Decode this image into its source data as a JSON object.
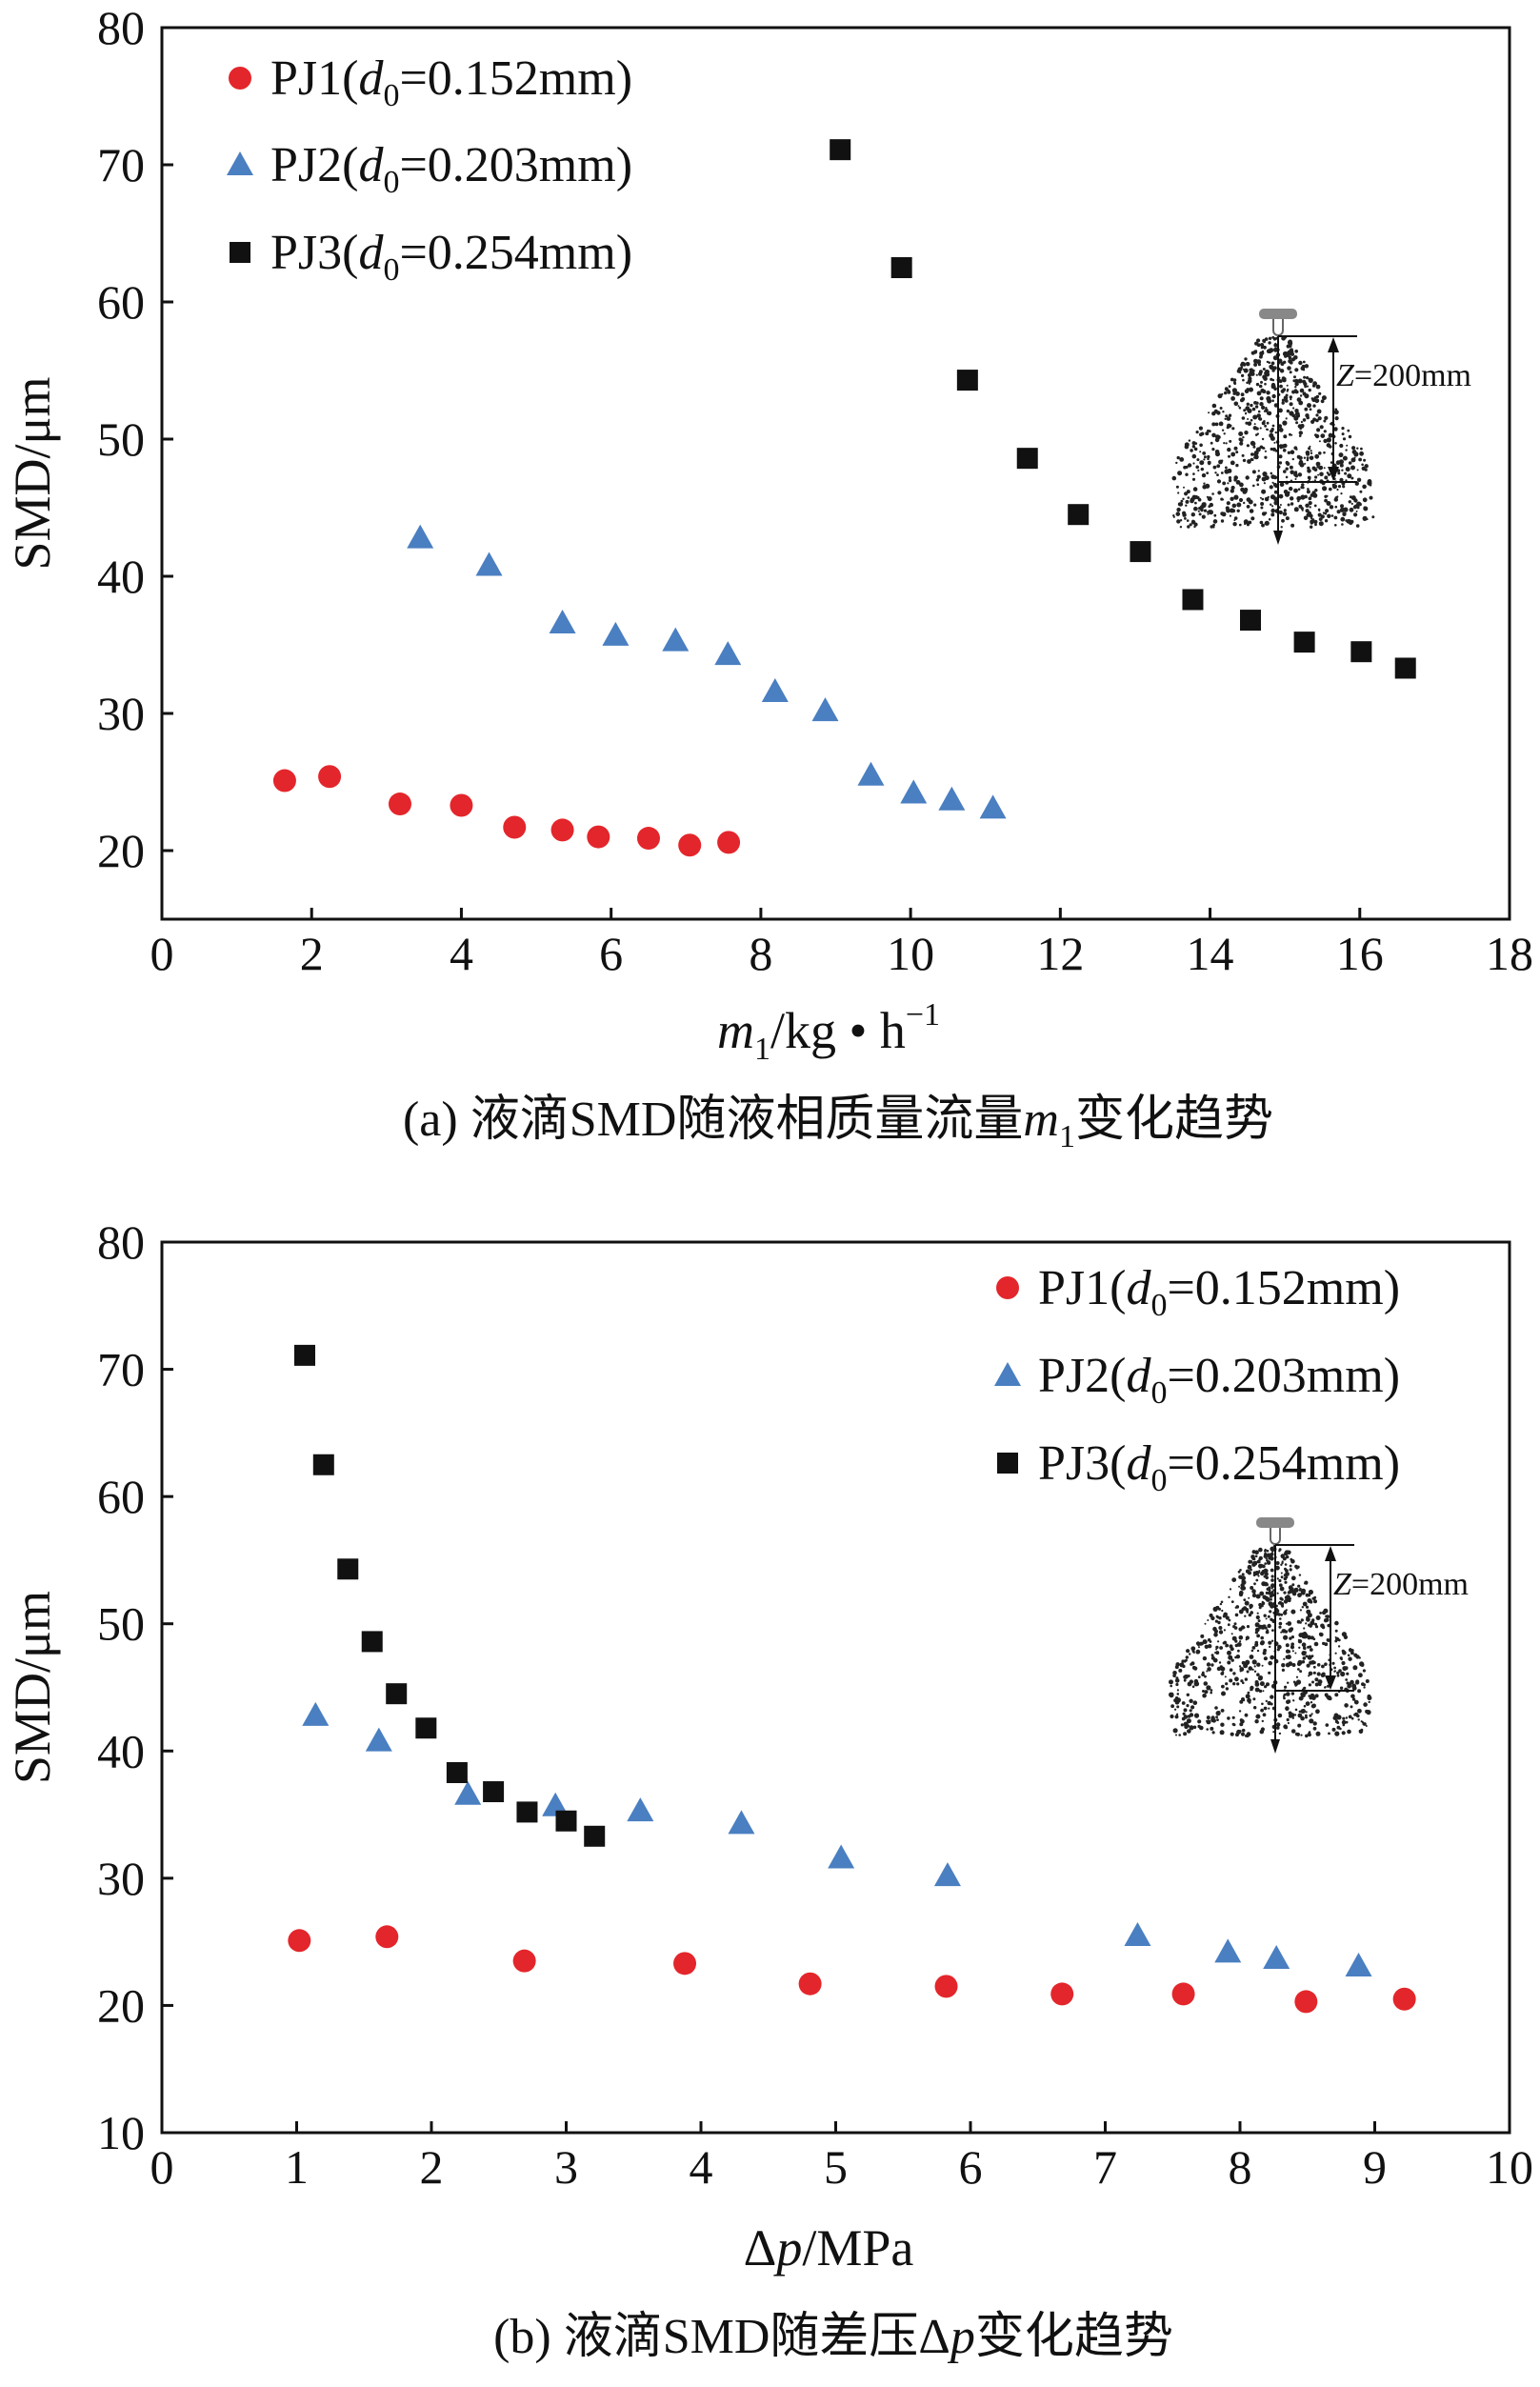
{
  "colors": {
    "PJ1": "#e3262b",
    "PJ2": "#4a7fc1",
    "PJ3": "#111111"
  },
  "legend": [
    {
      "name": "PJ1",
      "symbol": "d",
      "sub": "0",
      "value": "=0.152mm)",
      "marker": "circle"
    },
    {
      "name": "PJ2",
      "symbol": "d",
      "sub": "0",
      "value": "=0.203mm)",
      "marker": "triangle"
    },
    {
      "name": "PJ3",
      "symbol": "d",
      "sub": "0",
      "value": "=0.254mm)",
      "marker": "square"
    }
  ],
  "inset": {
    "label_var": "Z",
    "label_value": "=200mm",
    "icon": "spray-nozzle-icon"
  },
  "chart_data": [
    {
      "type": "scatter",
      "caption": {
        "prefix": "(a) 液滴SMD随液相质量流量",
        "var": "m",
        "sub": "1",
        "suffix": "变化趋势"
      },
      "xlabel": {
        "var": "m",
        "sub": "1",
        "unit": "/kg • h",
        "sup": "−1"
      },
      "ylabel": "SMD/μm",
      "xlim": [
        0,
        18
      ],
      "ylim": [
        15,
        80
      ],
      "xticks": [
        0,
        2,
        4,
        6,
        8,
        10,
        12,
        14,
        16,
        18
      ],
      "yticks": [
        20,
        30,
        40,
        50,
        60,
        70,
        80
      ],
      "legend_position": "top-left",
      "grid": false,
      "series": [
        {
          "name": "PJ1",
          "x": [
            1.64,
            2.24,
            3.18,
            4.0,
            4.71,
            5.35,
            5.83,
            6.5,
            7.05,
            7.57
          ],
          "y": [
            25.1,
            25.4,
            23.4,
            23.3,
            21.7,
            21.5,
            21.0,
            20.9,
            20.4,
            20.6
          ]
        },
        {
          "name": "PJ2",
          "x": [
            3.45,
            4.37,
            5.35,
            6.06,
            6.86,
            7.56,
            8.19,
            8.86,
            9.47,
            10.04,
            10.55,
            11.1
          ],
          "y": [
            42.8,
            40.8,
            36.6,
            35.7,
            35.3,
            34.3,
            31.6,
            30.2,
            25.5,
            24.2,
            23.7,
            23.1
          ]
        },
        {
          "name": "PJ3",
          "x": [
            9.06,
            9.88,
            10.76,
            11.56,
            12.24,
            13.07,
            13.77,
            14.54,
            15.26,
            16.02,
            16.61
          ],
          "y": [
            71.1,
            62.5,
            54.3,
            48.6,
            44.5,
            41.8,
            38.3,
            36.8,
            35.2,
            34.5,
            33.3
          ]
        }
      ]
    },
    {
      "type": "scatter",
      "caption": {
        "prefix": "(b) 液滴SMD随差压Δ",
        "var": "p",
        "sub": "",
        "suffix": "变化趋势"
      },
      "xlabel": {
        "var": "p",
        "pre": "Δ",
        "unit": "/MPa"
      },
      "ylabel": "SMD/μm",
      "xlim": [
        0,
        10
      ],
      "ylim": [
        10,
        80
      ],
      "xticks": [
        0,
        1,
        2,
        3,
        4,
        5,
        6,
        7,
        8,
        9,
        10
      ],
      "yticks": [
        10,
        20,
        30,
        40,
        50,
        60,
        70,
        80
      ],
      "legend_position": "top-right",
      "grid": false,
      "series": [
        {
          "name": "PJ1",
          "x": [
            1.02,
            1.67,
            2.69,
            3.88,
            4.81,
            5.82,
            6.68,
            7.58,
            8.49,
            9.22
          ],
          "y": [
            25.1,
            25.4,
            23.5,
            23.3,
            21.7,
            21.5,
            20.9,
            20.9,
            20.3,
            20.5
          ]
        },
        {
          "name": "PJ2",
          "x": [
            1.14,
            1.61,
            2.27,
            2.92,
            3.55,
            4.3,
            5.04,
            5.83,
            7.24,
            7.91,
            8.27,
            8.88
          ],
          "y": [
            42.8,
            40.8,
            36.6,
            35.7,
            35.3,
            34.3,
            31.6,
            30.2,
            25.5,
            24.2,
            23.7,
            23.1
          ]
        },
        {
          "name": "PJ3",
          "x": [
            1.06,
            1.2,
            1.38,
            1.56,
            1.74,
            1.96,
            2.19,
            2.46,
            2.71,
            3.0,
            3.21
          ],
          "y": [
            71.1,
            62.5,
            54.3,
            48.6,
            44.5,
            41.8,
            38.3,
            36.8,
            35.2,
            34.5,
            33.3
          ]
        }
      ]
    }
  ]
}
